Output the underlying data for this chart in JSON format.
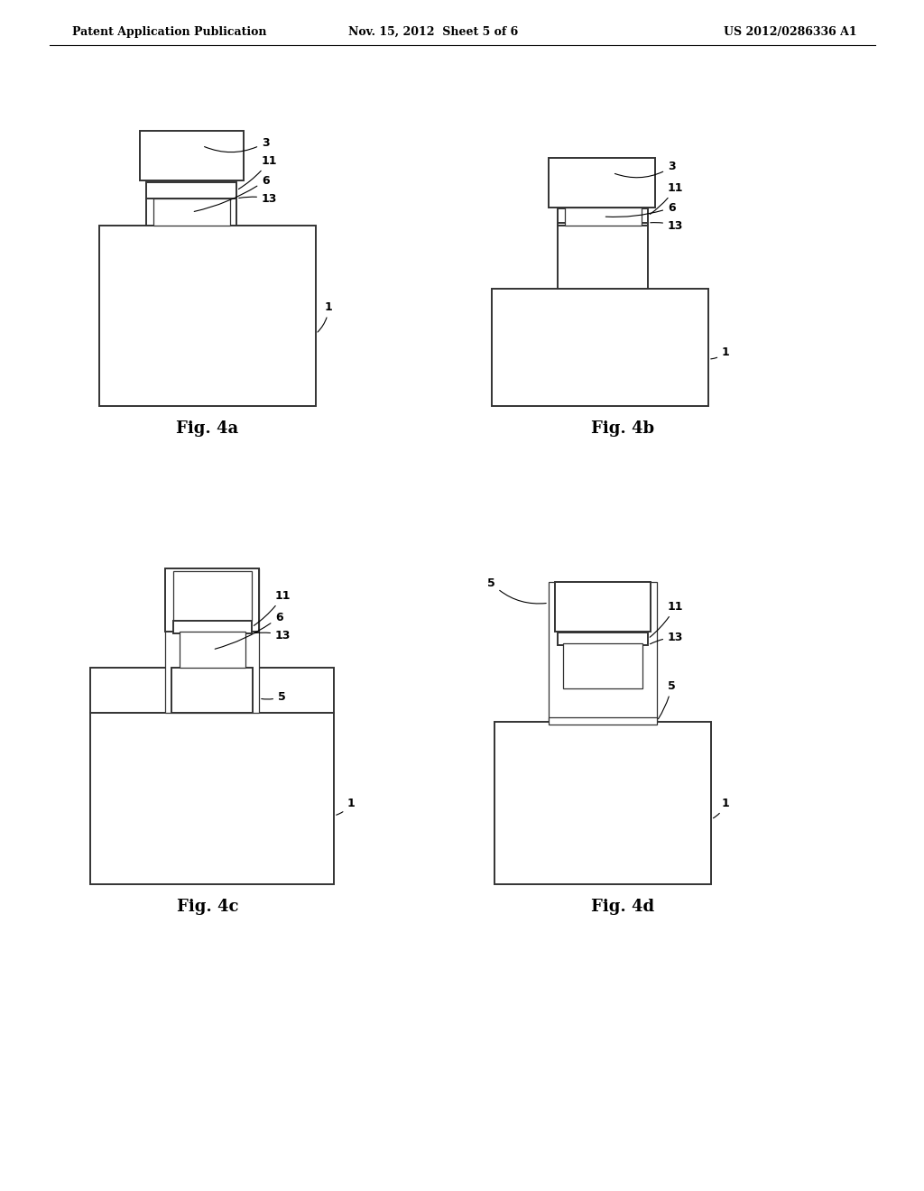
{
  "bg_color": "#ffffff",
  "header_left": "Patent Application Publication",
  "header_center": "Nov. 15, 2012  Sheet 5 of 6",
  "header_right": "US 2012/0286336 A1",
  "line_color": "#333333",
  "lw_thick": 1.4,
  "lw_thin": 0.9,
  "label_fontsize": 9,
  "caption_fontsize": 13
}
